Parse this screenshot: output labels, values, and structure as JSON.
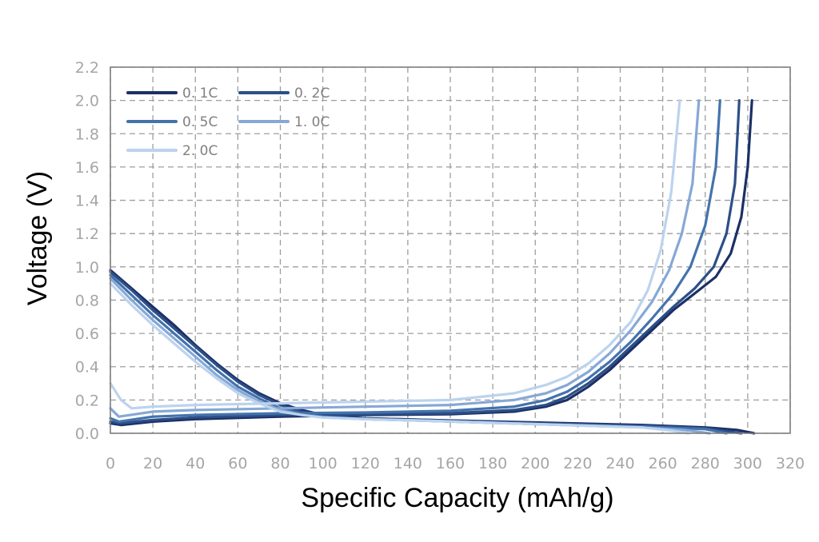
{
  "chart_data": {
    "type": "line",
    "title": "",
    "xlabel": "Specific Capacity (mAh/g)",
    "ylabel": "Voltage (V)",
    "xlim": [
      0,
      320
    ],
    "ylim": [
      0,
      2.2
    ],
    "xticks": [
      0,
      20,
      40,
      60,
      80,
      100,
      120,
      140,
      160,
      180,
      200,
      220,
      240,
      260,
      280,
      300,
      320
    ],
    "yticks": [
      0.0,
      0.2,
      0.4,
      0.6,
      0.8,
      1.0,
      1.2,
      1.4,
      1.6,
      1.8,
      2.0,
      2.2
    ],
    "grid": true,
    "legend_position": "top-left",
    "series": [
      {
        "name": "0. 1C",
        "color": "#1c2f66",
        "discharge": [
          [
            0,
            0.98
          ],
          [
            10,
            0.87
          ],
          [
            20,
            0.76
          ],
          [
            30,
            0.65
          ],
          [
            40,
            0.53
          ],
          [
            50,
            0.42
          ],
          [
            60,
            0.32
          ],
          [
            70,
            0.24
          ],
          [
            80,
            0.18
          ],
          [
            90,
            0.14
          ],
          [
            100,
            0.11
          ],
          [
            120,
            0.09
          ],
          [
            150,
            0.08
          ],
          [
            200,
            0.065
          ],
          [
            250,
            0.05
          ],
          [
            280,
            0.035
          ],
          [
            295,
            0.02
          ],
          [
            303,
            0.0
          ]
        ],
        "charge": [
          [
            0,
            0.06
          ],
          [
            5,
            0.05
          ],
          [
            20,
            0.07
          ],
          [
            40,
            0.085
          ],
          [
            80,
            0.1
          ],
          [
            120,
            0.11
          ],
          [
            160,
            0.115
          ],
          [
            190,
            0.13
          ],
          [
            205,
            0.16
          ],
          [
            215,
            0.2
          ],
          [
            225,
            0.28
          ],
          [
            235,
            0.38
          ],
          [
            245,
            0.5
          ],
          [
            255,
            0.62
          ],
          [
            265,
            0.74
          ],
          [
            275,
            0.84
          ],
          [
            285,
            0.94
          ],
          [
            292,
            1.08
          ],
          [
            297,
            1.3
          ],
          [
            300,
            1.6
          ],
          [
            302,
            2.0
          ]
        ]
      },
      {
        "name": "0. 2C",
        "color": "#2c4f87",
        "discharge": [
          [
            0,
            0.97
          ],
          [
            10,
            0.86
          ],
          [
            20,
            0.74
          ],
          [
            30,
            0.63
          ],
          [
            40,
            0.52
          ],
          [
            50,
            0.41
          ],
          [
            60,
            0.31
          ],
          [
            70,
            0.23
          ],
          [
            80,
            0.17
          ],
          [
            90,
            0.13
          ],
          [
            100,
            0.105
          ],
          [
            120,
            0.09
          ],
          [
            150,
            0.08
          ],
          [
            200,
            0.06
          ],
          [
            250,
            0.045
          ],
          [
            280,
            0.03
          ],
          [
            297,
            0.0
          ]
        ],
        "charge": [
          [
            0,
            0.07
          ],
          [
            5,
            0.06
          ],
          [
            20,
            0.08
          ],
          [
            40,
            0.095
          ],
          [
            80,
            0.11
          ],
          [
            120,
            0.115
          ],
          [
            160,
            0.12
          ],
          [
            190,
            0.14
          ],
          [
            205,
            0.17
          ],
          [
            215,
            0.22
          ],
          [
            225,
            0.3
          ],
          [
            235,
            0.4
          ],
          [
            245,
            0.52
          ],
          [
            255,
            0.64
          ],
          [
            265,
            0.76
          ],
          [
            275,
            0.87
          ],
          [
            284,
            1.0
          ],
          [
            290,
            1.2
          ],
          [
            294,
            1.5
          ],
          [
            296,
            2.0
          ]
        ]
      },
      {
        "name": "0. 5C",
        "color": "#4373ad",
        "discharge": [
          [
            0,
            0.95
          ],
          [
            10,
            0.83
          ],
          [
            20,
            0.71
          ],
          [
            30,
            0.6
          ],
          [
            40,
            0.49
          ],
          [
            50,
            0.38
          ],
          [
            60,
            0.28
          ],
          [
            70,
            0.21
          ],
          [
            80,
            0.15
          ],
          [
            90,
            0.12
          ],
          [
            100,
            0.1
          ],
          [
            120,
            0.085
          ],
          [
            150,
            0.075
          ],
          [
            200,
            0.055
          ],
          [
            250,
            0.04
          ],
          [
            280,
            0.025
          ],
          [
            290,
            0.0
          ]
        ],
        "charge": [
          [
            0,
            0.09
          ],
          [
            4,
            0.07
          ],
          [
            20,
            0.1
          ],
          [
            40,
            0.11
          ],
          [
            80,
            0.12
          ],
          [
            120,
            0.125
          ],
          [
            160,
            0.135
          ],
          [
            190,
            0.16
          ],
          [
            205,
            0.2
          ],
          [
            215,
            0.25
          ],
          [
            225,
            0.33
          ],
          [
            235,
            0.43
          ],
          [
            245,
            0.55
          ],
          [
            255,
            0.69
          ],
          [
            265,
            0.84
          ],
          [
            273,
            1.0
          ],
          [
            280,
            1.25
          ],
          [
            285,
            1.6
          ],
          [
            287,
            2.0
          ]
        ]
      },
      {
        "name": "1. 0C",
        "color": "#86a8d6",
        "discharge": [
          [
            0,
            0.93
          ],
          [
            10,
            0.8
          ],
          [
            20,
            0.68
          ],
          [
            30,
            0.57
          ],
          [
            40,
            0.46
          ],
          [
            50,
            0.35
          ],
          [
            60,
            0.26
          ],
          [
            70,
            0.19
          ],
          [
            80,
            0.14
          ],
          [
            90,
            0.11
          ],
          [
            100,
            0.095
          ],
          [
            120,
            0.085
          ],
          [
            150,
            0.075
          ],
          [
            200,
            0.055
          ],
          [
            250,
            0.035
          ],
          [
            270,
            0.02
          ],
          [
            282,
            0.0
          ]
        ],
        "charge": [
          [
            0,
            0.15
          ],
          [
            4,
            0.1
          ],
          [
            20,
            0.13
          ],
          [
            40,
            0.14
          ],
          [
            80,
            0.15
          ],
          [
            120,
            0.16
          ],
          [
            160,
            0.17
          ],
          [
            190,
            0.2
          ],
          [
            205,
            0.24
          ],
          [
            215,
            0.29
          ],
          [
            225,
            0.37
          ],
          [
            235,
            0.48
          ],
          [
            245,
            0.62
          ],
          [
            255,
            0.79
          ],
          [
            263,
            0.98
          ],
          [
            269,
            1.2
          ],
          [
            274,
            1.5
          ],
          [
            277,
            2.0
          ]
        ]
      },
      {
        "name": "2. 0C",
        "color": "#bcd3ee",
        "discharge": [
          [
            0,
            0.9
          ],
          [
            10,
            0.77
          ],
          [
            20,
            0.65
          ],
          [
            30,
            0.54
          ],
          [
            40,
            0.43
          ],
          [
            50,
            0.33
          ],
          [
            60,
            0.24
          ],
          [
            70,
            0.18
          ],
          [
            80,
            0.13
          ],
          [
            90,
            0.11
          ],
          [
            100,
            0.095
          ],
          [
            120,
            0.085
          ],
          [
            150,
            0.075
          ],
          [
            200,
            0.055
          ],
          [
            250,
            0.035
          ],
          [
            265,
            0.015
          ],
          [
            272,
            0.0
          ]
        ],
        "charge": [
          [
            0,
            0.3
          ],
          [
            5,
            0.2
          ],
          [
            10,
            0.15
          ],
          [
            20,
            0.16
          ],
          [
            40,
            0.17
          ],
          [
            80,
            0.18
          ],
          [
            120,
            0.19
          ],
          [
            160,
            0.2
          ],
          [
            190,
            0.24
          ],
          [
            205,
            0.29
          ],
          [
            215,
            0.34
          ],
          [
            225,
            0.42
          ],
          [
            235,
            0.53
          ],
          [
            245,
            0.67
          ],
          [
            253,
            0.86
          ],
          [
            259,
            1.1
          ],
          [
            264,
            1.45
          ],
          [
            268,
            2.0
          ]
        ]
      }
    ]
  }
}
